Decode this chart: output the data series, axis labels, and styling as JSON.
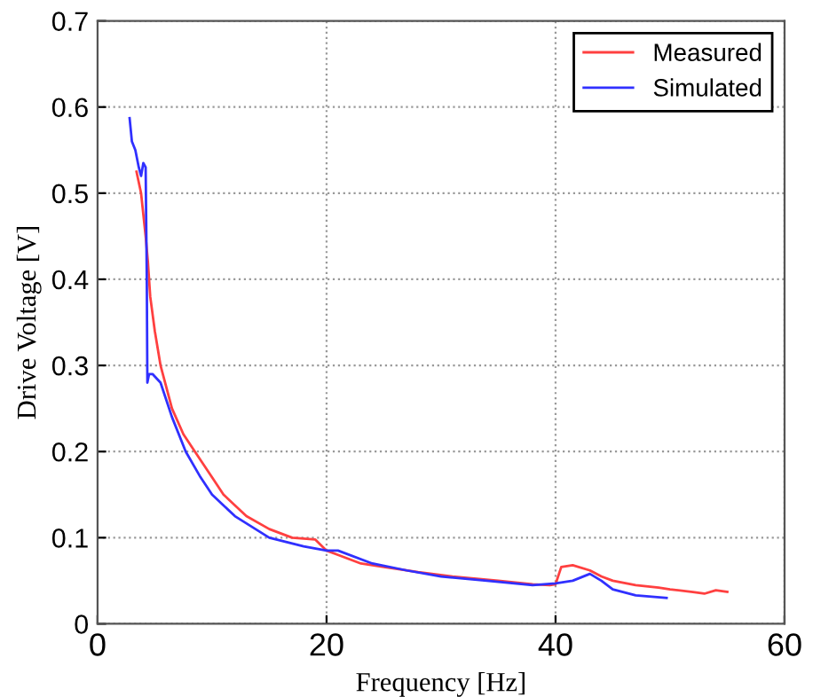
{
  "chart_data": {
    "type": "line",
    "xlabel": "Frequency [Hz]",
    "ylabel": "Drive Voltage [V]",
    "xlim": [
      0,
      60
    ],
    "xticks": [
      0,
      20,
      40,
      60
    ],
    "ylim": [
      0,
      0.7
    ],
    "yticks": [
      0,
      0.1,
      0.2,
      0.3,
      0.4,
      0.5,
      0.6,
      0.7
    ],
    "grid": true,
    "legend": "top right",
    "line_style": "solid",
    "marker": "none",
    "series": [
      {
        "name": "Measured",
        "color": "#ff4040",
        "x": [
          3.4,
          3.8,
          4.2,
          4.4,
          4.6,
          5,
          5.5,
          6.5,
          7.5,
          8.5,
          10,
          11,
          13,
          15,
          17,
          19,
          20,
          21,
          23,
          25,
          28,
          31,
          35,
          38,
          39.5,
          40,
          40.5,
          41.5,
          43,
          44,
          45,
          47,
          49,
          50,
          52,
          53,
          54,
          55
        ],
        "values": [
          0.525,
          0.5,
          0.45,
          0.42,
          0.38,
          0.34,
          0.3,
          0.25,
          0.22,
          0.2,
          0.17,
          0.15,
          0.125,
          0.11,
          0.1,
          0.098,
          0.085,
          0.08,
          0.07,
          0.066,
          0.06,
          0.055,
          0.05,
          0.046,
          0.045,
          0.046,
          0.066,
          0.068,
          0.062,
          0.055,
          0.05,
          0.045,
          0.042,
          0.04,
          0.037,
          0.035,
          0.039,
          0.037
        ]
      },
      {
        "name": "Simulated",
        "color": "#3030ff",
        "x": [
          2.8,
          3.0,
          3.3,
          3.6,
          3.8,
          4.0,
          4.2,
          4.3,
          4.35,
          4.5,
          4.8,
          5.5,
          6.5,
          7.7,
          9,
          10,
          12,
          15,
          18,
          20,
          21,
          24,
          27,
          30,
          34,
          38,
          40,
          41.5,
          43,
          44,
          45,
          47,
          49.7
        ],
        "values": [
          0.587,
          0.56,
          0.55,
          0.53,
          0.52,
          0.535,
          0.53,
          0.4,
          0.28,
          0.29,
          0.29,
          0.28,
          0.24,
          0.2,
          0.17,
          0.15,
          0.125,
          0.1,
          0.09,
          0.085,
          0.085,
          0.07,
          0.062,
          0.055,
          0.05,
          0.045,
          0.047,
          0.05,
          0.058,
          0.05,
          0.04,
          0.033,
          0.03
        ]
      }
    ]
  }
}
